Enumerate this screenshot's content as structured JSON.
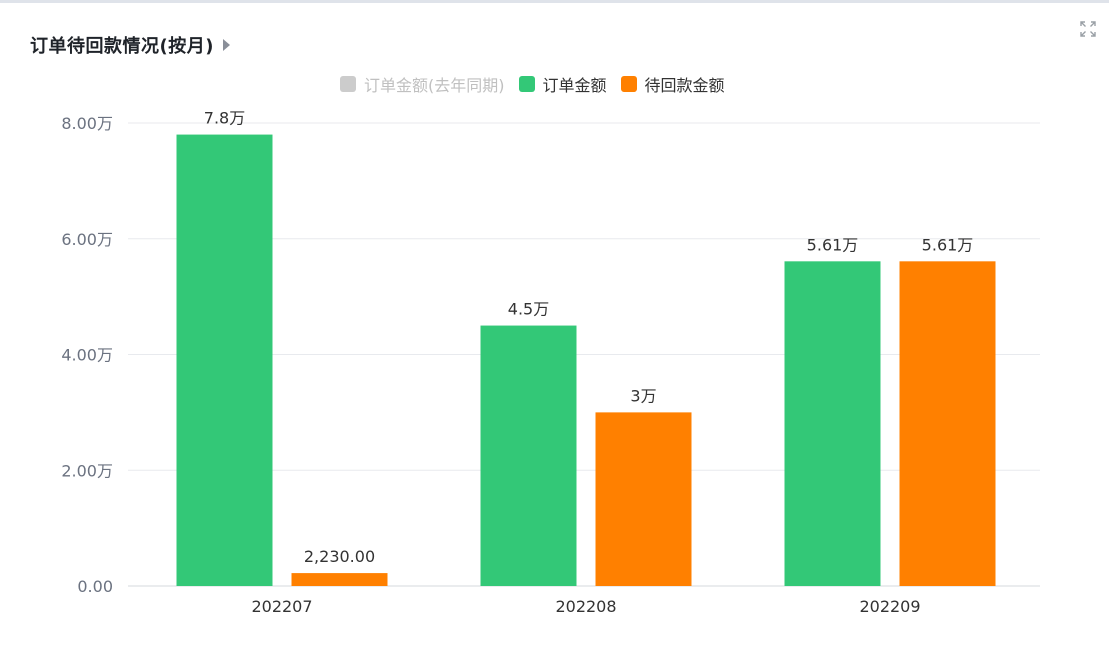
{
  "header": {
    "title": "订单待回款情况(按月)",
    "caret_icon": "caret-right-icon",
    "expand_icon": "fullscreen-expand-icon"
  },
  "legend": [
    {
      "label": "订单金额(去年同期)",
      "color": "#cccccc",
      "text_color": "#c0c0c0",
      "disabled": true
    },
    {
      "label": "订单金额",
      "color": "#33c877",
      "text_color": "#333333",
      "disabled": false
    },
    {
      "label": "待回款金额",
      "color": "#ff8000",
      "text_color": "#333333",
      "disabled": false
    }
  ],
  "chart_data": {
    "type": "bar",
    "categories": [
      "202207",
      "202208",
      "202209"
    ],
    "series": [
      {
        "name": "订单金额(去年同期)",
        "values": [
          null,
          null,
          null
        ],
        "color": "#cccccc",
        "hidden": true
      },
      {
        "name": "订单金额",
        "values": [
          78000,
          45000,
          56100
        ],
        "labels": [
          "7.8万",
          "4.5万",
          "5.61万"
        ],
        "color": "#33c877"
      },
      {
        "name": "待回款金额",
        "values": [
          2230,
          30000,
          56100
        ],
        "labels": [
          "2,230.00",
          "3万",
          "5.61万"
        ],
        "color": "#ff8000"
      }
    ],
    "yticks": [
      {
        "value": 0,
        "label": "0.00"
      },
      {
        "value": 20000,
        "label": "2.00万"
      },
      {
        "value": 40000,
        "label": "4.00万"
      },
      {
        "value": 60000,
        "label": "6.00万"
      },
      {
        "value": 80000,
        "label": "8.00万"
      }
    ],
    "ylim": [
      0,
      80000
    ],
    "grid": true
  }
}
